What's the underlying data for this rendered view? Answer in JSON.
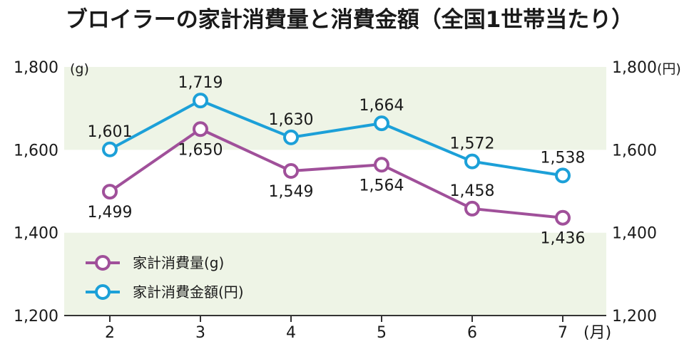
{
  "chart_data": {
    "type": "line",
    "title": "ブロイラーの家計消費量と消費金額（全国1世帯当たり）",
    "categories": [
      "2",
      "3",
      "4",
      "5",
      "6",
      "7"
    ],
    "x_unit": "(月)",
    "y_left_unit": "(g)",
    "y_right_unit": "(円)",
    "ylim": [
      1200,
      1800
    ],
    "y_ticks": [
      "1,200",
      "1,400",
      "1,600",
      "1,800"
    ],
    "y_tick_values": [
      1200,
      1400,
      1600,
      1800
    ],
    "grid": "alternating horizontal bands",
    "legend_position": "bottom-left",
    "series": [
      {
        "name": "家計消費量(g)",
        "color": "#a0509a",
        "values": [
          1499,
          1650,
          1549,
          1564,
          1458,
          1436
        ],
        "labels": [
          "1,499",
          "1,650",
          "1,549",
          "1,564",
          "1,458",
          "1,436"
        ]
      },
      {
        "name": "家計消費金額(円)",
        "color": "#1ca0d8",
        "values": [
          1601,
          1719,
          1630,
          1664,
          1572,
          1538
        ],
        "labels": [
          "1,601",
          "1,719",
          "1,630",
          "1,664",
          "1,572",
          "1,538"
        ]
      }
    ],
    "band_color": "#eef4e6"
  }
}
